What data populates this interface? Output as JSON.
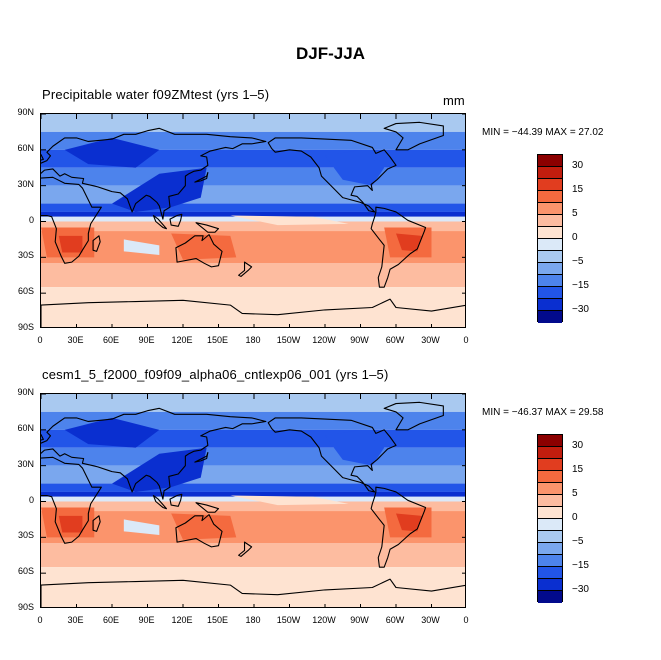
{
  "main_title": "DJF-JJA",
  "units": "mm",
  "lat_ticks": [
    "90N",
    "60N",
    "30N",
    "0",
    "30S",
    "60S",
    "90S"
  ],
  "lon_ticks": [
    "0",
    "30E",
    "60E",
    "90E",
    "120E",
    "150E",
    "180",
    "150W",
    "120W",
    "90W",
    "60W",
    "30W",
    "0"
  ],
  "colorbar": {
    "colors": [
      "#8b0000",
      "#c11d0e",
      "#e13d1f",
      "#f46a3f",
      "#fb946c",
      "#fdbca0",
      "#fee3d1",
      "#dbe9f8",
      "#a9c9f0",
      "#7aa7ee",
      "#4d83ec",
      "#2255e8",
      "#0a2fd0",
      "#020a8c"
    ],
    "labels": [
      "30",
      "15",
      "5",
      "0",
      "-5",
      "-15",
      "-30"
    ]
  },
  "panels": [
    {
      "title": "Precipitable water  f09ZMtest (yrs 1–5)",
      "minmax": "MIN = −44.39 MAX =  27.02"
    },
    {
      "title": "cesm1_5_f2000_f09f09_alpha06_cntlexp06_001 (yrs 1–5)",
      "minmax": "MIN = −46.37 MAX =  29.58"
    }
  ],
  "chart_data": [
    {
      "type": "heatmap",
      "title": "Precipitable water  f09ZMtest (yrs 1–5)",
      "units": "mm",
      "lat_range": [
        -90,
        90
      ],
      "lon_range": [
        0,
        360
      ],
      "min": -44.39,
      "max": 27.02,
      "contour_levels": [
        -30,
        -15,
        -5,
        0,
        5,
        15,
        30
      ]
    },
    {
      "type": "heatmap",
      "title": "cesm1_5_f2000_f09f09_alpha06_cntlexp06_001 (yrs 1–5)",
      "units": "mm",
      "lat_range": [
        -90,
        90
      ],
      "lon_range": [
        0,
        360
      ],
      "min": -46.37,
      "max": 29.58,
      "contour_levels": [
        -30,
        -15,
        -5,
        0,
        5,
        15,
        30
      ]
    }
  ]
}
